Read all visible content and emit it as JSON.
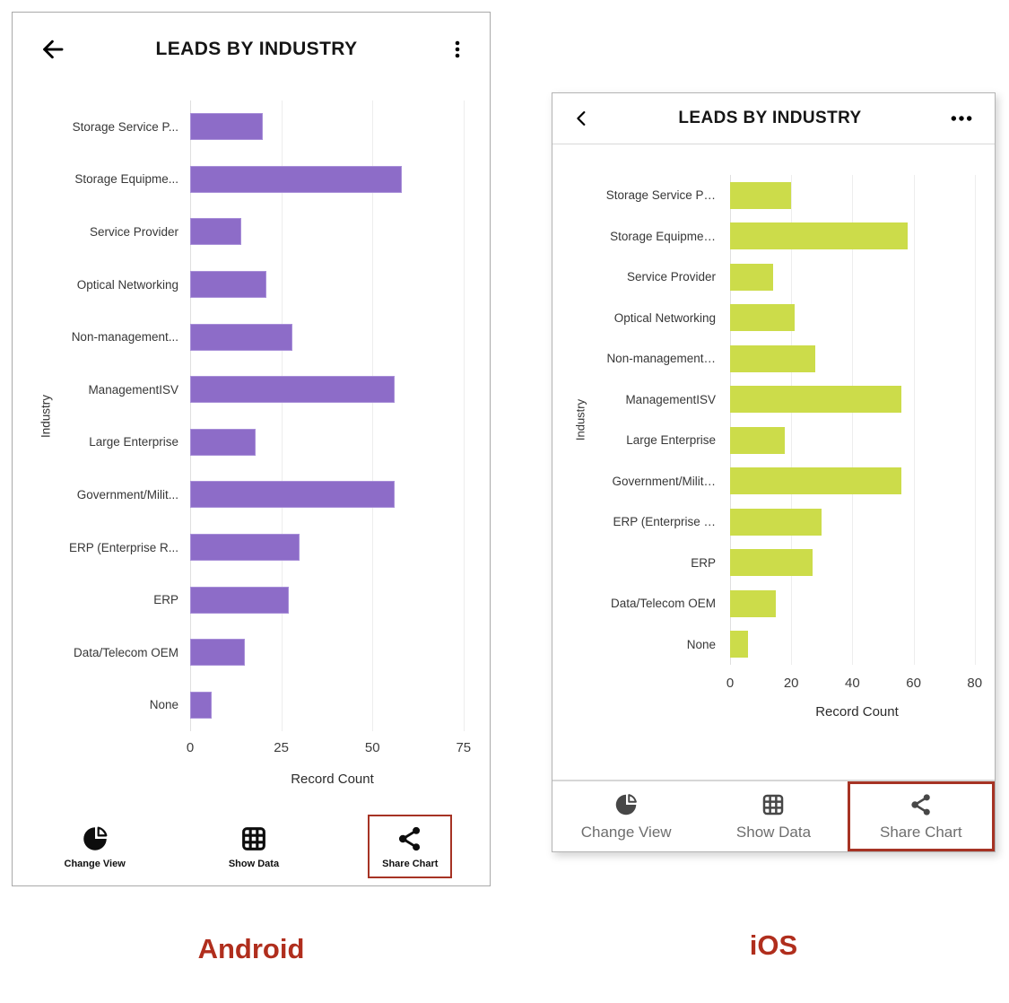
{
  "captions": {
    "android": "Android",
    "ios": "iOS",
    "color": "#b02e1d"
  },
  "android": {
    "header": {
      "title": "LEADS BY INDUSTRY",
      "back_icon": "arrow-left",
      "menu_icon": "kebab-vertical"
    },
    "chart_data": {
      "type": "bar",
      "orientation": "horizontal",
      "title": "LEADS BY INDUSTRY",
      "categories": [
        "Storage Service P...",
        "Storage Equipme...",
        "Service Provider",
        "Optical Networking",
        "Non-management...",
        "ManagementISV",
        "Large Enterprise",
        "Government/Milit...",
        "ERP (Enterprise R...",
        "ERP",
        "Data/Telecom OEM",
        "None"
      ],
      "values": [
        20,
        58,
        14,
        21,
        28,
        56,
        18,
        56,
        30,
        27,
        15,
        6
      ],
      "xlabel": "Record Count",
      "ylabel": "Industry",
      "xticks": [
        0,
        25,
        50,
        75
      ],
      "xlim": [
        0,
        78
      ],
      "bar_color": "#8d6cc8",
      "grid": true,
      "legend": false
    },
    "toolbar": [
      {
        "label": "Change View",
        "icon": "pie-chart"
      },
      {
        "label": "Show Data",
        "icon": "data-grid"
      },
      {
        "label": "Share Chart",
        "icon": "share",
        "highlighted": true
      }
    ],
    "highlight_color": "#a63324"
  },
  "ios": {
    "header": {
      "title": "LEADS BY INDUSTRY",
      "back_icon": "chevron-left",
      "menu_icon": "ellipsis-horizontal"
    },
    "chart_data": {
      "type": "bar",
      "orientation": "horizontal",
      "title": "LEADS BY INDUSTRY",
      "categories": [
        "Storage Service P…",
        "Storage Equipme…",
        "Service Provider",
        "Optical Networking",
        "Non-management…",
        "ManagementISV",
        "Large Enterprise",
        "Government/Milit…",
        "ERP (Enterprise …",
        "ERP",
        "Data/Telecom OEM",
        "None"
      ],
      "values": [
        20,
        58,
        14,
        21,
        28,
        56,
        18,
        56,
        30,
        27,
        15,
        6
      ],
      "xlabel": "Record Count",
      "ylabel": "Industry",
      "xticks": [
        0,
        20,
        40,
        60,
        80
      ],
      "xlim": [
        0,
        83
      ],
      "bar_color": "#ccdc4a",
      "grid": true,
      "legend": false
    },
    "toolbar": [
      {
        "label": "Change View",
        "icon": "pie-chart"
      },
      {
        "label": "Show Data",
        "icon": "data-grid"
      },
      {
        "label": "Share Chart",
        "icon": "share",
        "highlighted": true
      }
    ],
    "highlight_color": "#a63324"
  }
}
